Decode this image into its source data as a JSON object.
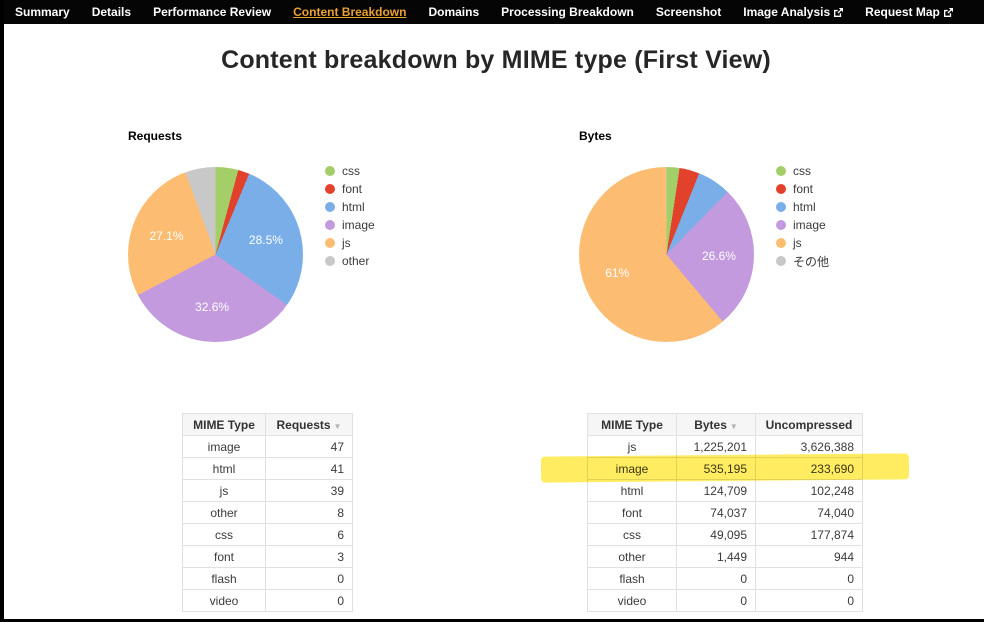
{
  "nav": {
    "items": [
      {
        "label": "Summary",
        "active": false,
        "external": false
      },
      {
        "label": "Details",
        "active": false,
        "external": false
      },
      {
        "label": "Performance Review",
        "active": false,
        "external": false
      },
      {
        "label": "Content Breakdown",
        "active": true,
        "external": false
      },
      {
        "label": "Domains",
        "active": false,
        "external": false
      },
      {
        "label": "Processing Breakdown",
        "active": false,
        "external": false
      },
      {
        "label": "Screenshot",
        "active": false,
        "external": false
      },
      {
        "label": "Image Analysis",
        "active": false,
        "external": true
      },
      {
        "label": "Request Map",
        "active": false,
        "external": true
      }
    ]
  },
  "page": {
    "title": "Content breakdown by MIME type (First View)"
  },
  "icons": {
    "sort_arrow": "▼"
  },
  "colors": {
    "css": "#a4ce67",
    "font": "#e2422c",
    "html": "#79aee9",
    "image": "#c29add",
    "js": "#fcbd72",
    "other": "#c8c8c8",
    "active_tab": "#e9a02f",
    "highlighter": "#ffe000"
  },
  "chart_data": [
    {
      "type": "pie",
      "title": "Requests",
      "legend_position": "right",
      "slices": [
        {
          "label": "css",
          "value": 6,
          "pct": 4.2,
          "color": "#a4ce67",
          "display": ""
        },
        {
          "label": "font",
          "value": 3,
          "pct": 2.1,
          "color": "#e2422c",
          "display": ""
        },
        {
          "label": "html",
          "value": 41,
          "pct": 28.5,
          "color": "#79aee9",
          "display": "28.5%"
        },
        {
          "label": "image",
          "value": 47,
          "pct": 32.6,
          "color": "#c29add",
          "display": "32.6%"
        },
        {
          "label": "js",
          "value": 39,
          "pct": 27.1,
          "color": "#fcbd72",
          "display": "27.1%"
        },
        {
          "label": "other",
          "value": 8,
          "pct": 5.6,
          "color": "#c8c8c8",
          "display": ""
        }
      ]
    },
    {
      "type": "pie",
      "title": "Bytes",
      "legend_position": "right",
      "slices": [
        {
          "label": "css",
          "value": 49095,
          "pct": 2.4,
          "color": "#a4ce67",
          "display": ""
        },
        {
          "label": "font",
          "value": 74037,
          "pct": 3.7,
          "color": "#e2422c",
          "display": ""
        },
        {
          "label": "html",
          "value": 124709,
          "pct": 6.2,
          "color": "#79aee9",
          "display": ""
        },
        {
          "label": "image",
          "value": 535195,
          "pct": 26.6,
          "color": "#c29add",
          "display": "26.6%"
        },
        {
          "label": "js",
          "value": 1225201,
          "pct": 61.0,
          "color": "#fcbd72",
          "display": "61%"
        },
        {
          "label": "その他",
          "value": 1449,
          "pct": 0.1,
          "color": "#c8c8c8",
          "display": ""
        }
      ]
    }
  ],
  "tables": [
    {
      "columns": [
        {
          "label": "MIME Type",
          "sort": false
        },
        {
          "label": "Requests",
          "sort": true
        }
      ],
      "rows": [
        {
          "cells": [
            "image",
            "47"
          ],
          "highlight": false
        },
        {
          "cells": [
            "html",
            "41"
          ],
          "highlight": false
        },
        {
          "cells": [
            "js",
            "39"
          ],
          "highlight": false
        },
        {
          "cells": [
            "other",
            "8"
          ],
          "highlight": false
        },
        {
          "cells": [
            "css",
            "6"
          ],
          "highlight": false
        },
        {
          "cells": [
            "font",
            "3"
          ],
          "highlight": false
        },
        {
          "cells": [
            "flash",
            "0"
          ],
          "highlight": false
        },
        {
          "cells": [
            "video",
            "0"
          ],
          "highlight": false
        }
      ]
    },
    {
      "columns": [
        {
          "label": "MIME Type",
          "sort": false
        },
        {
          "label": "Bytes",
          "sort": true
        },
        {
          "label": "Uncompressed",
          "sort": false
        }
      ],
      "rows": [
        {
          "cells": [
            "js",
            "1,225,201",
            "3,626,388"
          ],
          "highlight": false
        },
        {
          "cells": [
            "image",
            "535,195",
            "233,690"
          ],
          "highlight": true
        },
        {
          "cells": [
            "html",
            "124,709",
            "102,248"
          ],
          "highlight": false
        },
        {
          "cells": [
            "font",
            "74,037",
            "74,040"
          ],
          "highlight": false
        },
        {
          "cells": [
            "css",
            "49,095",
            "177,874"
          ],
          "highlight": false
        },
        {
          "cells": [
            "other",
            "1,449",
            "944"
          ],
          "highlight": false
        },
        {
          "cells": [
            "flash",
            "0",
            "0"
          ],
          "highlight": false
        },
        {
          "cells": [
            "video",
            "0",
            "0"
          ],
          "highlight": false
        }
      ]
    }
  ]
}
